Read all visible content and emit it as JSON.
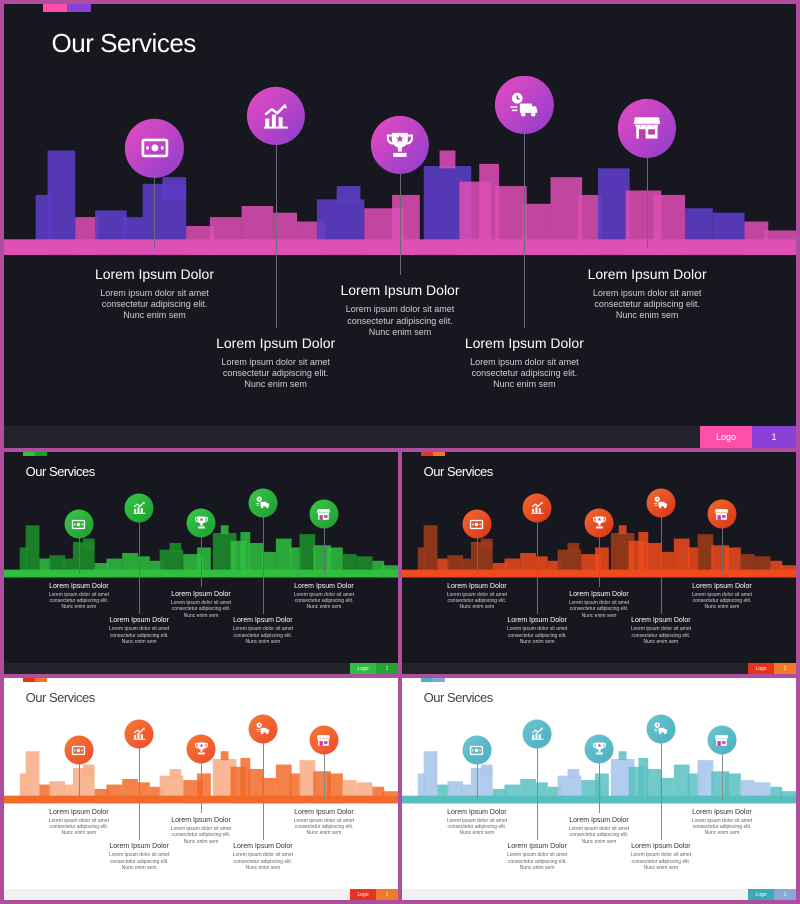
{
  "slides": [
    {
      "variant": "big",
      "theme": "dark",
      "background": "#17171f",
      "footer_bg": "#23232b",
      "primary": "#e04fb6",
      "secondary": "#5b3cc4",
      "circle_from": "#e94bc0",
      "circle_to": "#8d3dce",
      "title": "Our Services",
      "logo": "Logo",
      "page": "1",
      "logo_color": "#ff4fa8",
      "page_color": "#8a3fd6",
      "tag_colors": [
        "#ff4fa8",
        "#8a3fd6"
      ]
    },
    {
      "variant": "small",
      "theme": "dark",
      "background": "#17171f",
      "footer_bg": "#23232b",
      "primary": "#2fbf3f",
      "secondary": "#1c8a2a",
      "circle_from": "#39c94a",
      "circle_to": "#1e9a2e",
      "title": "Our Services",
      "logo": "Logo",
      "page": "1",
      "logo_color": "#2fbf3f",
      "page_color": "#22a434",
      "tag_colors": [
        "#2fbf3f",
        "#1e9a2e"
      ]
    },
    {
      "variant": "small",
      "theme": "dark",
      "background": "#17171f",
      "footer_bg": "#23232b",
      "primary": "#ee4a1c",
      "secondary": "#9a3a1a",
      "circle_from": "#f26a2e",
      "circle_to": "#d9331a",
      "title": "Our Services",
      "logo": "Logo",
      "page": "1",
      "logo_color": "#e8331c",
      "page_color": "#f07a28",
      "tag_colors": [
        "#e8331c",
        "#f07a28"
      ]
    },
    {
      "variant": "small",
      "theme": "light",
      "background": "#ffffff",
      "footer_bg": "#f0f0f0",
      "primary": "#f26a2a",
      "secondary": "#f7b089",
      "circle_from": "#f47a35",
      "circle_to": "#ef4a2c",
      "title": "Our Services",
      "logo": "Logo",
      "page": "1",
      "logo_color": "#e8331c",
      "page_color": "#f07a28",
      "tag_colors": [
        "#e8331c",
        "#f07a28"
      ]
    },
    {
      "variant": "small",
      "theme": "light",
      "background": "#ffffff",
      "footer_bg": "#f0f0f0",
      "primary": "#58bfbf",
      "secondary": "#a9c6ea",
      "circle_from": "#6cc6d1",
      "circle_to": "#4aaec0",
      "title": "Our Services",
      "logo": "Logo",
      "page": "1",
      "logo_color": "#3aaab0",
      "page_color": "#8aa6da",
      "tag_colors": [
        "#48b4b4",
        "#8aa6da"
      ]
    }
  ],
  "services": [
    {
      "heading": "Lorem Ipsum Dolor",
      "body": "Lorem ipsum dolor sit amet consectetur adipiscing elit. Nunc enim sem",
      "icon": "money-icon"
    },
    {
      "heading": "Lorem Ipsum Dolor",
      "body": "Lorem ipsum dolor sit amet consectetur adipiscing elit. Nunc enim sem",
      "icon": "bar-chart-icon"
    },
    {
      "heading": "Lorem Ipsum Dolor",
      "body": "Lorem ipsum dolor sit amet consectetur adipiscing elit. Nunc enim sem",
      "icon": "trophy-icon"
    },
    {
      "heading": "Lorem Ipsum Dolor",
      "body": "Lorem ipsum dolor sit amet consectetur adipiscing elit. Nunc enim sem",
      "icon": "delivery-truck-icon"
    },
    {
      "heading": "Lorem Ipsum Dolor",
      "body": "Lorem ipsum dolor sit amet consectetur adipiscing elit. Nunc enim sem",
      "icon": "shop-icon"
    }
  ]
}
